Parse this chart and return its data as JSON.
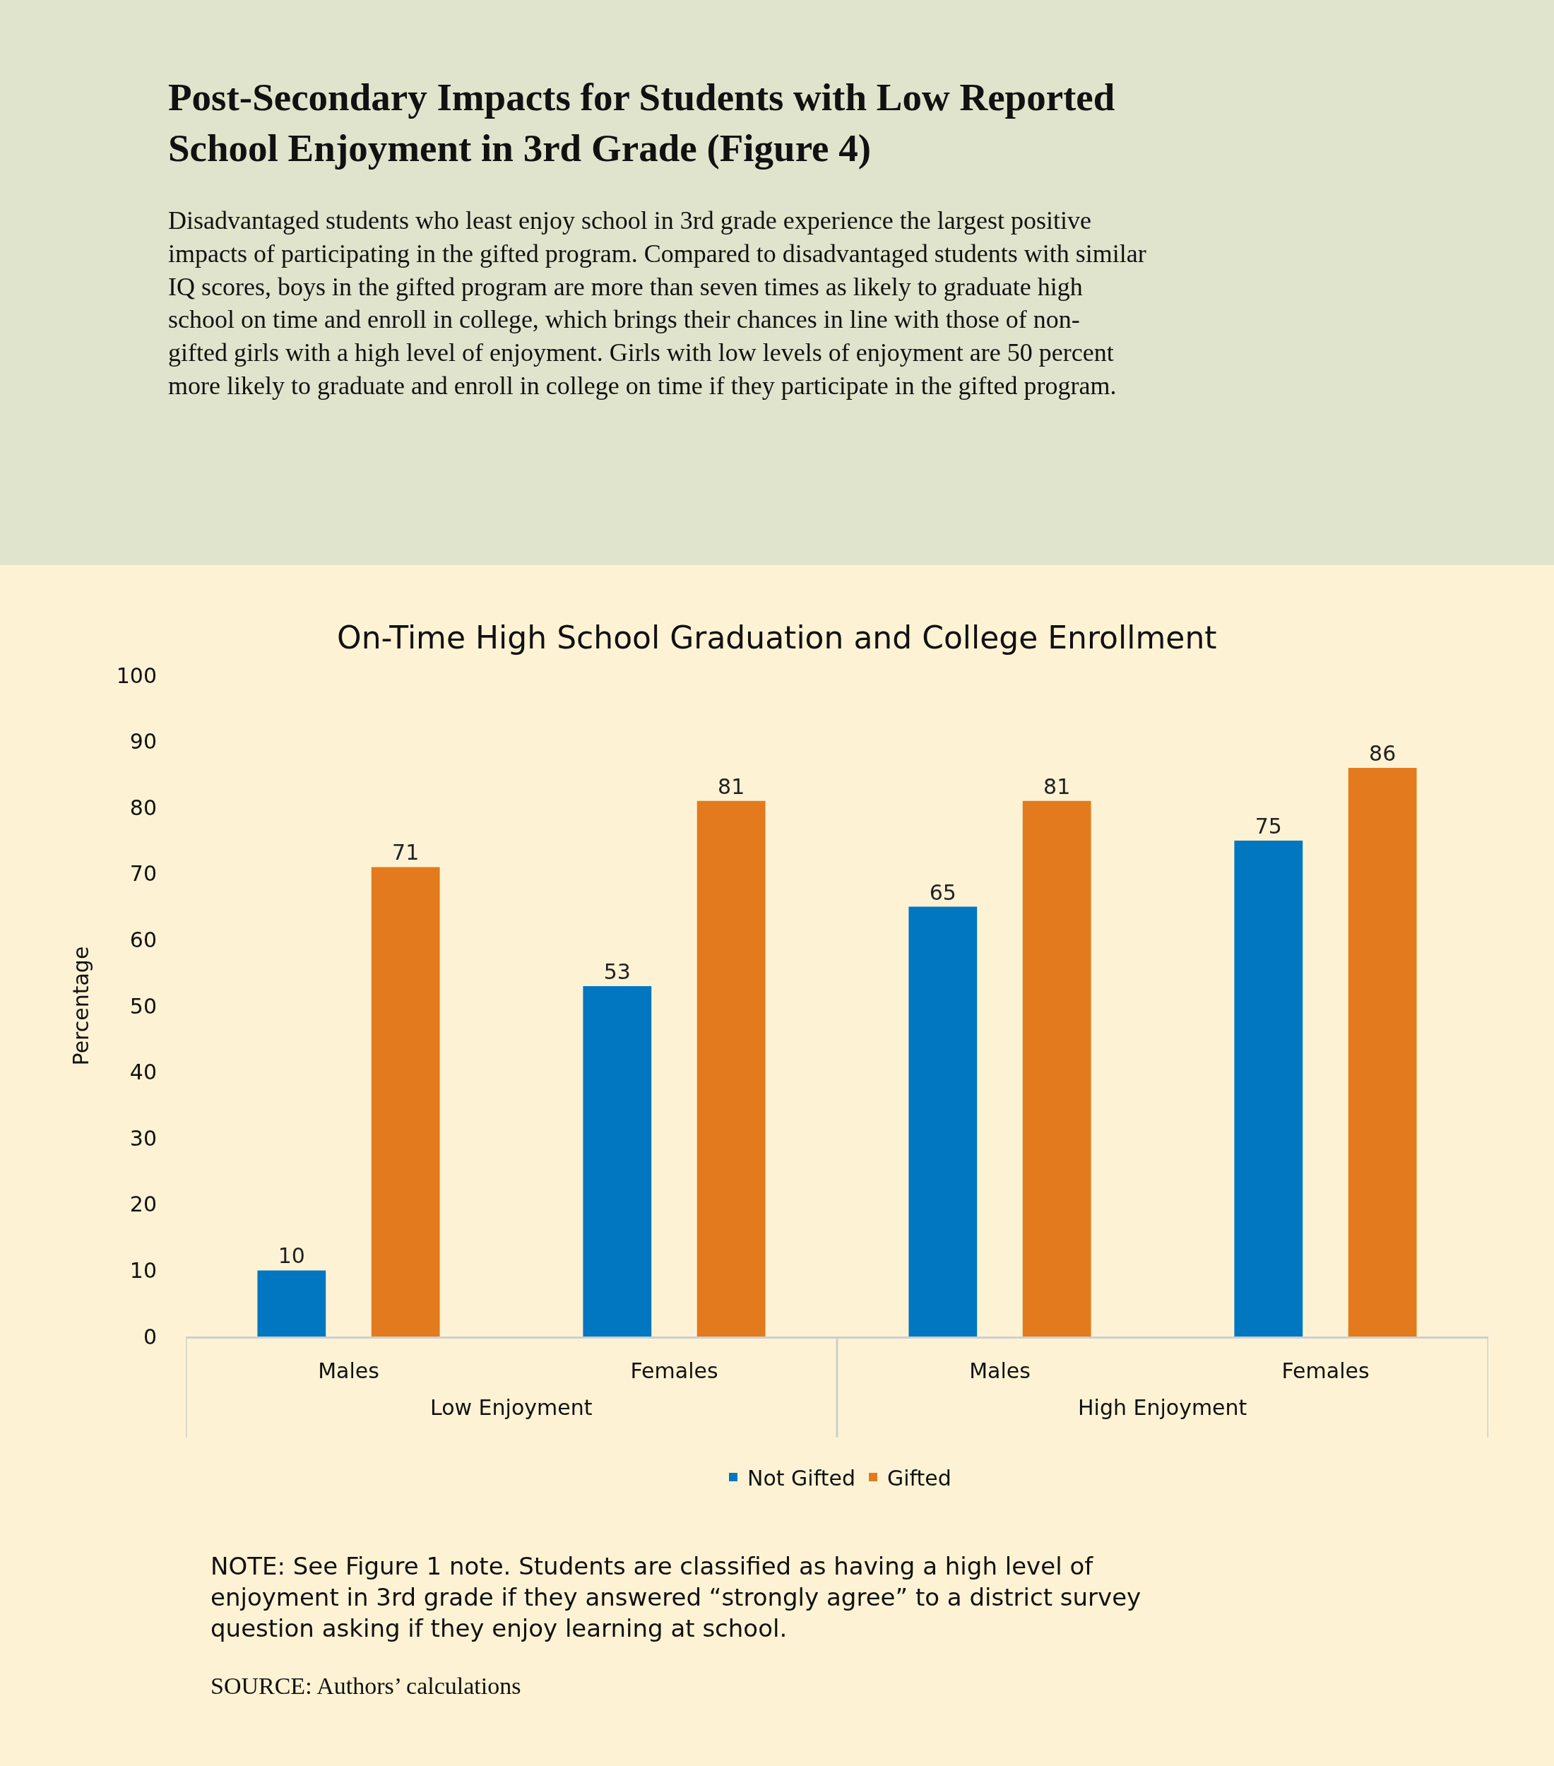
{
  "chart_data": {
    "type": "bar",
    "title": "Post-Secondary Impacts for Students with Low Reported School Enjoyment in 3rd Grade (Figure 4)",
    "subtitle": "Disadvantaged students who least enjoy school in 3rd grade experience the largest positive impacts of participating in the gifted program. Compared to disadvantaged students with similar IQ scores, boys in the gifted program are more than seven times as likely to graduate high school on time and enroll in college, which brings their chances in line with those of non-gifted girls with a high level of enjoyment. Girls with low levels of enjoyment are 50 percent more likely to graduate and enroll in college on time if they participate in the gifted program.",
    "ylabel": "Percentage",
    "categories": [
      "Males",
      "Females",
      "Males",
      "Females"
    ],
    "series": [
      {
        "name": "Not Gifted",
        "color": "#0077c0",
        "values": [
          10,
          53,
          65,
          75
        ]
      },
      {
        "name": "Gifted",
        "color": "#e37b1e",
        "values": [
          71,
          81,
          81,
          86
        ]
      }
    ],
    "annotations": [
      "On-Time High School Graduation and College Enrollment",
      "Low Enjoyment",
      "High Enjoyment",
      "NOTE: See Figure 1 note. Students are classified as having a high level of enjoyment in 3rd grade if they answered “strongly agree” to a district survey question asking if they enjoy learning at school.",
      "SOURCE: Authors’ calculations"
    ],
    "ylim": [
      0,
      100
    ],
    "yticks": [
      0,
      10,
      20,
      30,
      40,
      50,
      60,
      70,
      80,
      90,
      100
    ],
    "data_labels": true,
    "grid": false,
    "legend": "bottom"
  }
}
